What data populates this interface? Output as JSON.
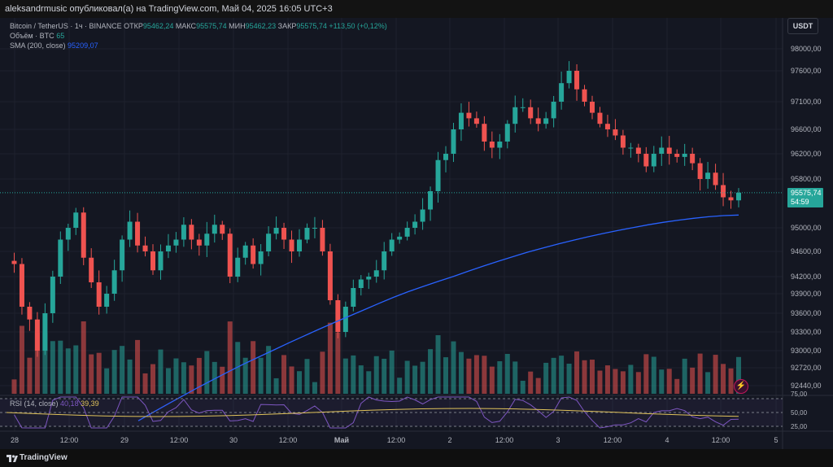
{
  "header": {
    "publisher": "aleksandrmusic опубликовал(а) на TradingView.com, Май 04, 2025 16:05 UTC+3"
  },
  "legend": {
    "symbol": "Bitcoin / TetherUS · 1ч · BINANCE",
    "open_label": "ОТКР",
    "open": "95462,24",
    "high_label": "МАКС",
    "high": "95575,74",
    "low_label": "МИН",
    "low": "95462,23",
    "close_label": "ЗАКР",
    "close": "95575,74",
    "change": "+113,50 (+0,12%)",
    "volume_label": "Объём · BTC",
    "volume": "65",
    "sma_label": "SMA (200, close)",
    "sma": "95209,07"
  },
  "currency": "USDT",
  "last_price": {
    "value": "95575,74",
    "countdown": "54:59"
  },
  "rsi": {
    "label": "RSI (14, close)",
    "value1": "40,18",
    "value2": "39,39"
  },
  "footer": {
    "brand": "TradingView"
  },
  "colors": {
    "up": "#26a69a",
    "down": "#ef5350",
    "sma": "#2962ff",
    "rsi": "#7e57c2",
    "rsi_ma": "#e0c35b",
    "bg": "#141722",
    "grid": "#1e222d"
  },
  "chart_data": {
    "type": "candlestick",
    "price_ticks": [
      "98000,00",
      "97600,00",
      "97100,00",
      "96600,00",
      "96200,00",
      "95800,00",
      "95000,00",
      "94600,00",
      "94200,00",
      "93900,00",
      "93600,00",
      "93300,00",
      "93000,00",
      "92720,00",
      "92440,00"
    ],
    "rsi_ticks": [
      "75,00",
      "50,00",
      "25,00"
    ],
    "time_labels": [
      "28",
      "12:00",
      "29",
      "12:00",
      "30",
      "12:00",
      "Май",
      "12:00",
      "2",
      "12:00",
      "3",
      "12:00",
      "4",
      "12:00",
      "5"
    ],
    "close_path": [
      94450,
      94400,
      93700,
      93500,
      93000,
      93600,
      94200,
      94800,
      95000,
      95250,
      94500,
      94100,
      93700,
      93900,
      94300,
      94800,
      95100,
      94700,
      94600,
      94300,
      94600,
      94700,
      94800,
      95050,
      94800,
      94700,
      94900,
      95050,
      94900,
      94200,
      94500,
      94700,
      94400,
      94600,
      94900,
      95000,
      94800,
      94600,
      94800,
      95000,
      95000,
      94600,
      93800,
      93300,
      93700,
      94000,
      94150,
      94200,
      94300,
      94600,
      94800,
      94850,
      95000,
      95100,
      95300,
      95600,
      96100,
      96200,
      96600,
      96900,
      96800,
      96700,
      96400,
      96300,
      96400,
      96700,
      97000,
      97000,
      96800,
      96700,
      96800,
      97100,
      97400,
      97600,
      97300,
      97100,
      96900,
      96700,
      96600,
      96500,
      96300,
      96300,
      96200,
      96000,
      96200,
      96300,
      96200,
      96150,
      96200,
      96050,
      95800,
      95900,
      95700,
      95500,
      95450,
      95575
    ],
    "sma": {
      "start": 91900,
      "end": 95209.07
    }
  }
}
